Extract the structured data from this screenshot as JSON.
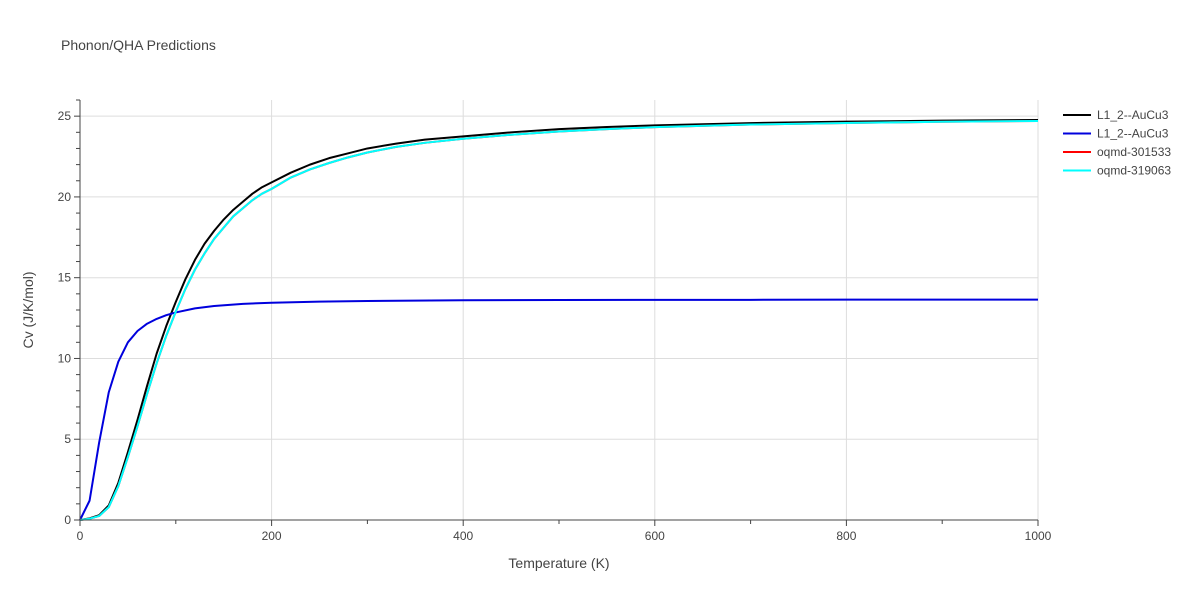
{
  "chart_data": {
    "type": "line",
    "title": "Phonon/QHA Predictions",
    "xlabel": "Temperature (K)",
    "ylabel": "Cv (J/K/mol)",
    "xlim": [
      0,
      1000
    ],
    "ylim": [
      0,
      26
    ],
    "x_ticks": [
      0,
      200,
      400,
      600,
      800,
      1000
    ],
    "y_ticks": [
      0,
      5,
      10,
      15,
      20,
      25
    ],
    "grid": true,
    "legend_position": "right",
    "series": [
      {
        "name": "L1_2--AuCu3",
        "color": "#000000",
        "x": [
          0,
          10,
          20,
          30,
          40,
          50,
          60,
          70,
          80,
          90,
          100,
          110,
          120,
          130,
          140,
          150,
          160,
          170,
          180,
          190,
          200,
          220,
          240,
          260,
          280,
          300,
          330,
          360,
          400,
          450,
          500,
          550,
          600,
          700,
          800,
          900,
          1000
        ],
        "y": [
          0,
          0.1,
          0.3,
          0.9,
          2.3,
          4.2,
          6.2,
          8.3,
          10.3,
          12.0,
          13.5,
          14.9,
          16.1,
          17.1,
          17.9,
          18.6,
          19.2,
          19.7,
          20.2,
          20.6,
          20.9,
          21.5,
          22.0,
          22.4,
          22.7,
          23.0,
          23.3,
          23.55,
          23.75,
          24.0,
          24.2,
          24.33,
          24.43,
          24.57,
          24.66,
          24.72,
          24.76
        ]
      },
      {
        "name": "L1_2--AuCu3",
        "color": "#0000dd",
        "x": [
          0,
          10,
          20,
          30,
          40,
          50,
          60,
          70,
          80,
          90,
          100,
          120,
          140,
          170,
          200,
          250,
          300,
          400,
          500,
          600,
          700,
          800,
          900,
          1000
        ],
        "y": [
          0,
          1.2,
          4.8,
          7.9,
          9.8,
          11.0,
          11.7,
          12.15,
          12.45,
          12.68,
          12.85,
          13.1,
          13.25,
          13.38,
          13.45,
          13.52,
          13.56,
          13.6,
          13.62,
          13.63,
          13.63,
          13.64,
          13.64,
          13.64
        ]
      },
      {
        "name": "oqmd-301533",
        "color": "#ff0000",
        "x": [
          0,
          10,
          20,
          30,
          40,
          50,
          60,
          70,
          80,
          90,
          100,
          110,
          120,
          130,
          140,
          150,
          160,
          170,
          180,
          190,
          200,
          220,
          240,
          260,
          280,
          300,
          330,
          360,
          400,
          450,
          500,
          550,
          600,
          700,
          800,
          900,
          1000
        ],
        "y": [
          0,
          0.08,
          0.25,
          0.8,
          2.1,
          3.9,
          5.8,
          7.8,
          9.7,
          11.4,
          12.9,
          14.3,
          15.5,
          16.5,
          17.4,
          18.1,
          18.8,
          19.3,
          19.8,
          20.2,
          20.5,
          21.2,
          21.7,
          22.1,
          22.45,
          22.75,
          23.1,
          23.35,
          23.6,
          23.85,
          24.05,
          24.2,
          24.32,
          24.48,
          24.58,
          24.65,
          24.7
        ]
      },
      {
        "name": "oqmd-319063",
        "color": "#00ffff",
        "x": [
          0,
          10,
          20,
          30,
          40,
          50,
          60,
          70,
          80,
          90,
          100,
          110,
          120,
          130,
          140,
          150,
          160,
          170,
          180,
          190,
          200,
          220,
          240,
          260,
          280,
          300,
          330,
          360,
          400,
          450,
          500,
          550,
          600,
          700,
          800,
          900,
          1000
        ],
        "y": [
          0,
          0.08,
          0.25,
          0.8,
          2.1,
          3.9,
          5.8,
          7.8,
          9.7,
          11.4,
          12.9,
          14.3,
          15.5,
          16.5,
          17.4,
          18.1,
          18.8,
          19.3,
          19.8,
          20.2,
          20.5,
          21.2,
          21.7,
          22.1,
          22.45,
          22.75,
          23.1,
          23.35,
          23.6,
          23.85,
          24.05,
          24.2,
          24.32,
          24.48,
          24.58,
          24.65,
          24.7
        ]
      }
    ]
  }
}
